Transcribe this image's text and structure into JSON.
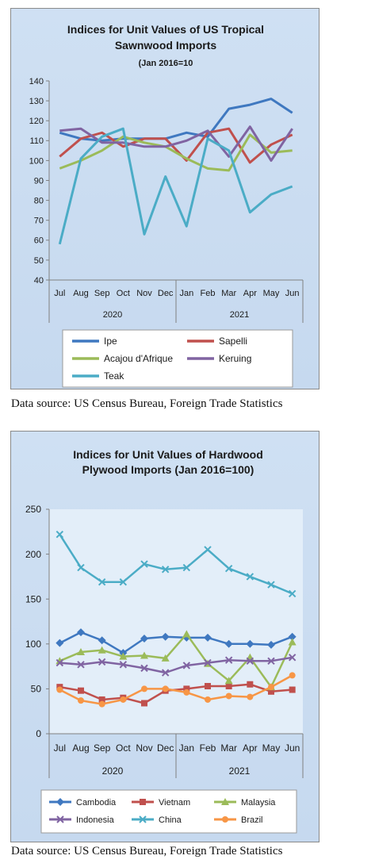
{
  "chart_data": [
    {
      "type": "line",
      "title_lines": [
        "Indices for Unit Values of US Tropical",
        "Sawnwood Imports"
      ],
      "subtitle": "(Jan 2016=10",
      "categories": [
        "Jul",
        "Aug",
        "Sep",
        "Oct",
        "Nov",
        "Dec",
        "Jan",
        "Feb",
        "Mar",
        "Apr",
        "May",
        "Jun"
      ],
      "year_groups": [
        {
          "label": "2020",
          "count": 6
        },
        {
          "label": "2021",
          "count": 6
        }
      ],
      "ylim": [
        40,
        140
      ],
      "yticks": [
        40,
        50,
        60,
        70,
        80,
        90,
        100,
        110,
        120,
        130,
        140
      ],
      "grid": false,
      "legend_position": "bottom",
      "series": [
        {
          "name": "Ipe",
          "color": "#3f78c0",
          "values": [
            114,
            111,
            110,
            111,
            111,
            111,
            114,
            112,
            126,
            128,
            131,
            124
          ]
        },
        {
          "name": "Sapelli",
          "color": "#c0504d",
          "values": [
            102,
            111,
            114,
            107,
            111,
            111,
            100,
            114,
            116,
            99,
            108,
            113
          ]
        },
        {
          "name": "Acajou d'Afrique",
          "color": "#9bbb59",
          "values": [
            96,
            100,
            105,
            112,
            109,
            107,
            101,
            96,
            95,
            113,
            104,
            105
          ]
        },
        {
          "name": "Keruing",
          "color": "#8064a2",
          "values": [
            115,
            116,
            109,
            109,
            107,
            107,
            110,
            115,
            102,
            117,
            100,
            116
          ]
        },
        {
          "name": "Teak",
          "color": "#4bacc6",
          "values": [
            58,
            101,
            112,
            116,
            63,
            92,
            67,
            111,
            105,
            74,
            83,
            87
          ]
        }
      ]
    },
    {
      "type": "line",
      "title_lines": [
        "Indices for Unit Values of Hardwood",
        "Plywood Imports (Jan 2016=100)"
      ],
      "categories": [
        "Jul",
        "Aug",
        "Sep",
        "Oct",
        "Nov",
        "Dec",
        "Jan",
        "Feb",
        "Mar",
        "Apr",
        "May",
        "Jun"
      ],
      "year_groups": [
        {
          "label": "2020",
          "count": 6
        },
        {
          "label": "2021",
          "count": 6
        }
      ],
      "ylim": [
        0,
        250
      ],
      "yticks": [
        0,
        50,
        100,
        150,
        200,
        250
      ],
      "grid": false,
      "legend_position": "bottom",
      "series": [
        {
          "name": "Cambodia",
          "color": "#3f78c0",
          "marker": "diamond",
          "values": [
            101,
            113,
            104,
            90,
            106,
            108,
            107,
            107,
            100,
            100,
            99,
            108
          ]
        },
        {
          "name": "Vietnam",
          "color": "#c0504d",
          "marker": "square",
          "values": [
            52,
            48,
            38,
            40,
            34,
            48,
            50,
            53,
            53,
            55,
            47,
            49
          ]
        },
        {
          "name": "Malaysia",
          "color": "#9bbb59",
          "marker": "triangle",
          "values": [
            81,
            91,
            93,
            86,
            87,
            84,
            111,
            78,
            59,
            85,
            52,
            102
          ]
        },
        {
          "name": "Indonesia",
          "color": "#8064a2",
          "marker": "x",
          "values": [
            79,
            77,
            80,
            77,
            73,
            68,
            76,
            79,
            82,
            81,
            81,
            85
          ]
        },
        {
          "name": "China",
          "color": "#4bacc6",
          "marker": "x",
          "values": [
            222,
            185,
            169,
            169,
            189,
            183,
            185,
            205,
            184,
            175,
            166,
            156
          ]
        },
        {
          "name": "Brazil",
          "color": "#f79646",
          "marker": "circle",
          "values": [
            49,
            37,
            33,
            38,
            50,
            50,
            46,
            38,
            42,
            41,
            52,
            65
          ]
        }
      ]
    }
  ],
  "sources": [
    "Data source: US Census Bureau, Foreign Trade Statistics",
    "Data source: US Census Bureau, Foreign Trade Statistics"
  ]
}
